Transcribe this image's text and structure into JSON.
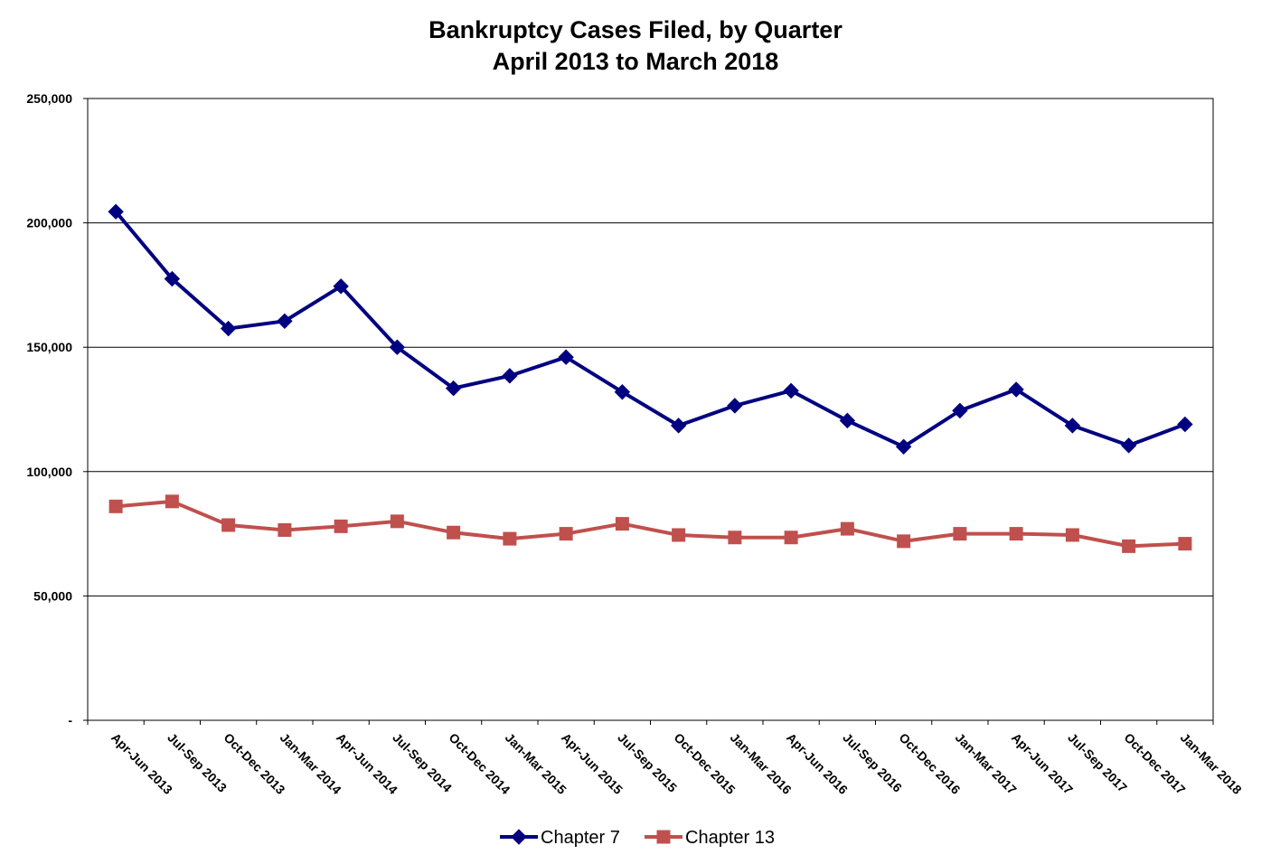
{
  "chart_data": {
    "type": "line",
    "title": "Bankruptcy Cases Filed, by Quarter",
    "subtitle": "April 2013 to March 2018",
    "xlabel": "",
    "ylabel": "",
    "ylim": [
      0,
      250000
    ],
    "yticks": [
      0,
      50000,
      100000,
      150000,
      200000,
      250000
    ],
    "ytick_labels": [
      "-",
      "50,000",
      "100,000",
      "150,000",
      "200,000",
      "250,000"
    ],
    "grid": true,
    "legend_position": "bottom",
    "categories": [
      "Apr-Jun 2013",
      "Jul-Sep 2013",
      "Oct-Dec 2013",
      "Jan-Mar 2014",
      "Apr-Jun 2014",
      "Jul-Sep 2014",
      "Oct-Dec 2014",
      "Jan-Mar 2015",
      "Apr-Jun 2015",
      "Jul-Sep 2015",
      "Oct-Dec 2015",
      "Jan-Mar 2016",
      "Apr-Jun 2016",
      "Jul-Sep 2016",
      "Oct-Dec 2016",
      "Jan-Mar 2017",
      "Apr-Jun 2017",
      "Jul-Sep 2017",
      "Oct-Dec 2017",
      "Jan-Mar 2018"
    ],
    "series": [
      {
        "name": "Chapter 7",
        "color": "#000080",
        "marker": "diamond",
        "values": [
          204500,
          177500,
          157500,
          160500,
          174500,
          150000,
          133500,
          138500,
          146000,
          132000,
          118500,
          126500,
          132500,
          120500,
          110000,
          124500,
          133000,
          118500,
          110500,
          119000
        ]
      },
      {
        "name": "Chapter 13",
        "color": "#C0504D",
        "marker": "square",
        "values": [
          86000,
          88000,
          78500,
          76500,
          78000,
          80000,
          75500,
          73000,
          75000,
          79000,
          74500,
          73500,
          73500,
          77000,
          72000,
          75000,
          75000,
          74500,
          70000,
          71000
        ]
      }
    ]
  }
}
